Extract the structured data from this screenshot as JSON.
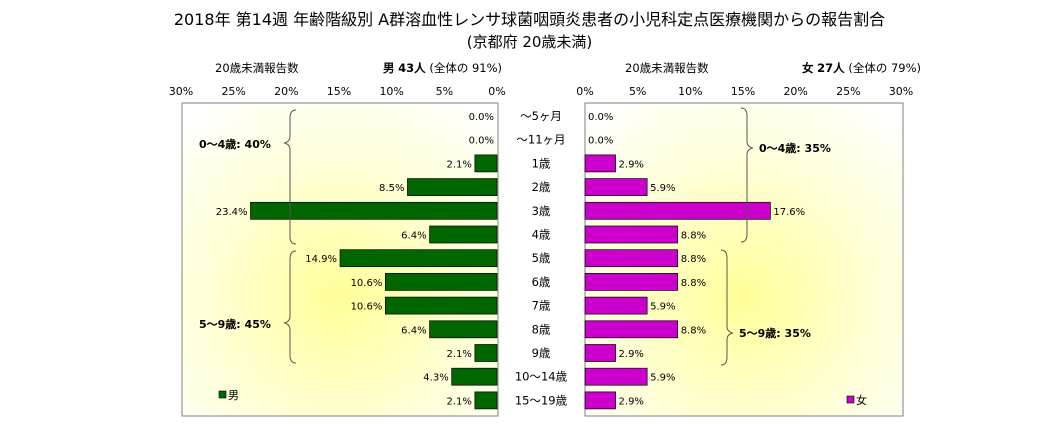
{
  "title": "2018年 第14週 年齢階級別 A群溶血性レンサ球菌咽頭炎患者の小児科定点医療機関からの報告割合",
  "subtitle": "(京都府 20歳未満)",
  "left_header": {
    "label": "20歳未満報告数",
    "sex": "男",
    "count": "43人",
    "note": "(全体の 91%)"
  },
  "right_header": {
    "label": "20歳未満報告数",
    "sex": "女",
    "count": "27人",
    "note": "(全体の 79%)"
  },
  "group_labels": {
    "left_0_4": "0〜4歳: 40%",
    "left_5_9": "5〜9歳: 45%",
    "right_0_4": "0〜4歳: 35%",
    "right_5_9": "5〜9歳: 35%"
  },
  "legend": {
    "male": "男",
    "female": "女"
  },
  "colors": {
    "male": "#006600",
    "female": "#cc00cc",
    "bg_glow": "#ffff99",
    "border": "#808080"
  },
  "chart_data": {
    "type": "bar",
    "orientation": "horizontal-butterfly",
    "categories": [
      "〜5ヶ月",
      "〜11ヶ月",
      "1歳",
      "2歳",
      "3歳",
      "4歳",
      "5歳",
      "6歳",
      "7歳",
      "8歳",
      "9歳",
      "10〜14歳",
      "15〜19歳"
    ],
    "series": [
      {
        "name": "男",
        "values": [
          0.0,
          0.0,
          2.1,
          8.5,
          23.4,
          6.4,
          14.9,
          10.6,
          10.6,
          6.4,
          2.1,
          4.3,
          2.1
        ]
      },
      {
        "name": "女",
        "values": [
          0.0,
          0.0,
          2.9,
          5.9,
          17.6,
          8.8,
          8.8,
          8.8,
          5.9,
          8.8,
          2.9,
          5.9,
          2.9
        ]
      }
    ],
    "xlim": [
      0,
      30
    ],
    "ticks": [
      "0%",
      "5%",
      "10%",
      "15%",
      "20%",
      "25%",
      "30%"
    ],
    "value_labels": {
      "male": [
        "0.0%",
        "0.0%",
        "2.1%",
        "8.5%",
        "23.4%",
        "6.4%",
        "14.9%",
        "10.6%",
        "10.6%",
        "6.4%",
        "2.1%",
        "4.3%",
        "2.1%"
      ],
      "female": [
        "0.0%",
        "0.0%",
        "2.9%",
        "5.9%",
        "17.6%",
        "8.8%",
        "8.8%",
        "8.8%",
        "5.9%",
        "8.8%",
        "2.9%",
        "5.9%",
        "2.9%"
      ]
    },
    "legend_position": "bottom-corners"
  }
}
